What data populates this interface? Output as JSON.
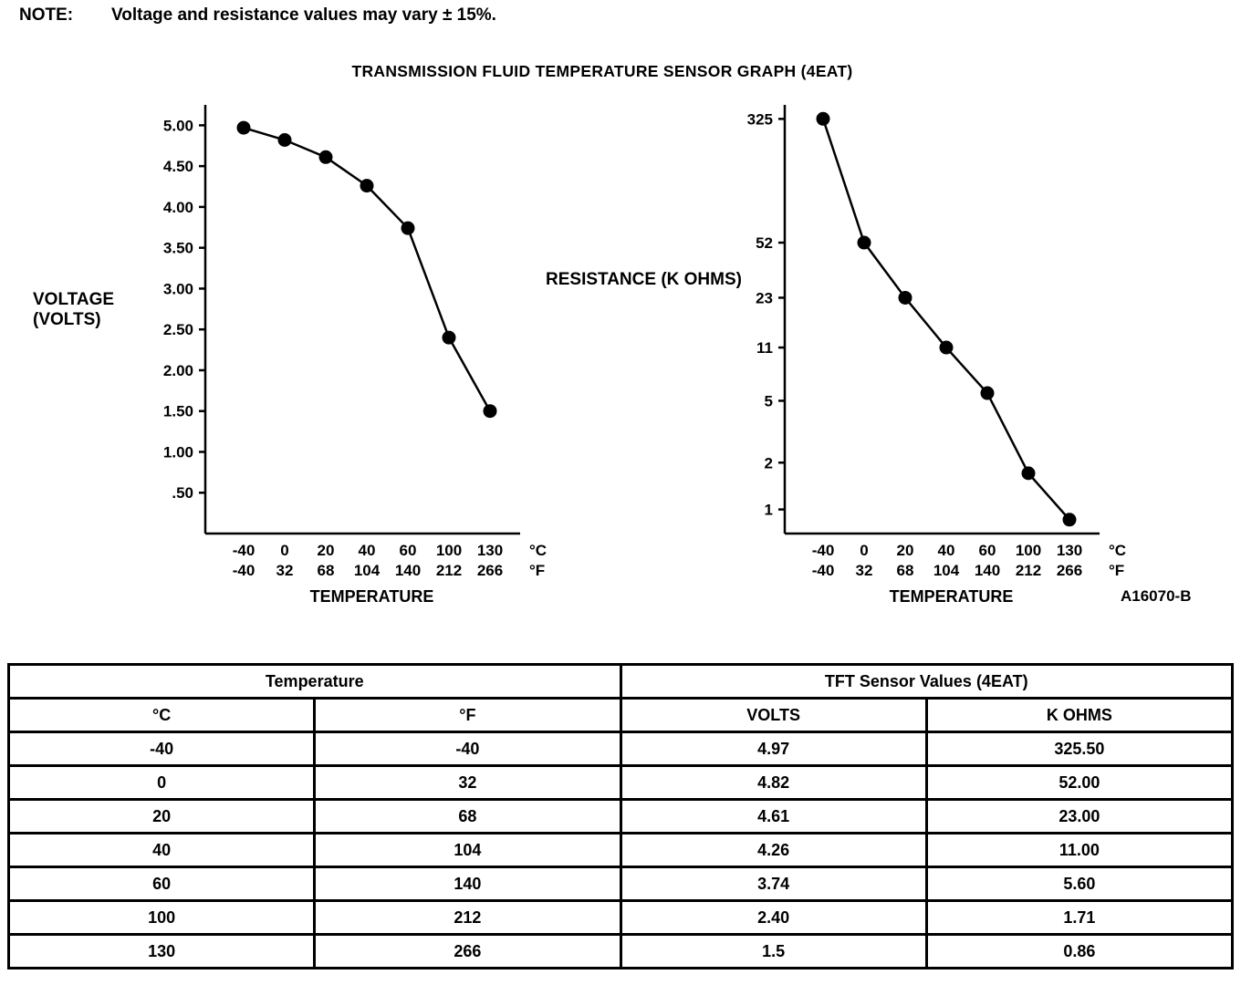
{
  "note": {
    "label": "NOTE:",
    "text": "Voltage and resistance values may vary ± 15%."
  },
  "title": "TRANSMISSION FLUID TEMPERATURE SENSOR GRAPH (4EAT)",
  "figure_code": "A16070-B",
  "chart_data": [
    {
      "type": "line",
      "title": "TRANSMISSION FLUID TEMPERATURE SENSOR GRAPH (4EAT)",
      "ylabel": "VOLTAGE (VOLTS)",
      "xlabel": "TEMPERATURE",
      "x_c": [
        -40,
        0,
        20,
        40,
        60,
        100,
        130
      ],
      "x_f": [
        -40,
        32,
        68,
        104,
        140,
        212,
        266
      ],
      "x_units": [
        "°C",
        "°F"
      ],
      "values": [
        4.97,
        4.82,
        4.61,
        4.26,
        3.74,
        2.4,
        1.5
      ],
      "y_scale": "linear",
      "y_domain": [
        0,
        5.25
      ],
      "y_tick_values": [
        5.0,
        4.5,
        4.0,
        3.5,
        3.0,
        2.5,
        2.0,
        1.5,
        1.0,
        0.5
      ],
      "y_ticks": [
        "5.00",
        "4.50",
        "4.00",
        "3.50",
        "3.00",
        "2.50",
        "2.00",
        "1.50",
        "1.00",
        ".50"
      ],
      "grid": false,
      "legend": "none"
    },
    {
      "type": "line",
      "title": "TRANSMISSION FLUID TEMPERATURE SENSOR GRAPH (4EAT)",
      "ylabel": "RESISTANCE (K OHMS)",
      "xlabel": "TEMPERATURE",
      "x_c": [
        -40,
        0,
        20,
        40,
        60,
        100,
        130
      ],
      "x_f": [
        -40,
        32,
        68,
        104,
        140,
        212,
        266
      ],
      "x_units": [
        "°C",
        "°F"
      ],
      "values": [
        325.5,
        52.0,
        23.0,
        11.0,
        5.6,
        1.71,
        0.86
      ],
      "y_scale": "log",
      "y_domain": [
        0.7,
        400
      ],
      "y_tick_values": [
        325,
        52,
        23,
        11,
        5,
        2,
        1
      ],
      "y_ticks": [
        "325",
        "52",
        "23",
        "11",
        "5",
        "2",
        "1"
      ],
      "grid": false,
      "legend": "none"
    }
  ],
  "table": {
    "header_groups": [
      "Temperature",
      "TFT Sensor Values (4EAT)"
    ],
    "columns": [
      "°C",
      "°F",
      "VOLTS",
      "K OHMS"
    ],
    "rows": [
      [
        "-40",
        "-40",
        "4.97",
        "325.50"
      ],
      [
        "0",
        "32",
        "4.82",
        "52.00"
      ],
      [
        "20",
        "68",
        "4.61",
        "23.00"
      ],
      [
        "40",
        "104",
        "4.26",
        "11.00"
      ],
      [
        "60",
        "140",
        "3.74",
        "5.60"
      ],
      [
        "100",
        "212",
        "2.40",
        "1.71"
      ],
      [
        "130",
        "266",
        "1.5",
        "0.86"
      ]
    ]
  }
}
